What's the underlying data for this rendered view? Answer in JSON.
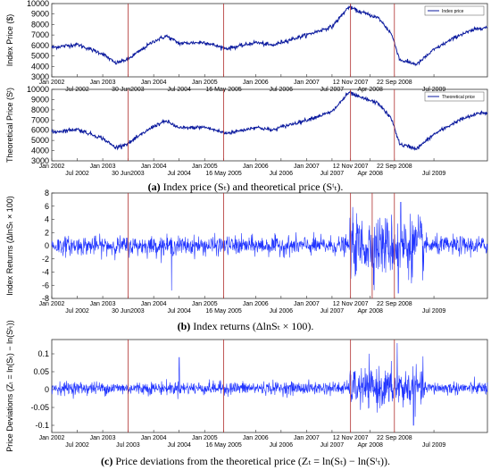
{
  "chart_data": [
    {
      "id": "a1",
      "type": "line",
      "ylabel": "Index Price ($)",
      "ylim": [
        3000,
        10000
      ],
      "yticks": [
        3000,
        4000,
        5000,
        6000,
        7000,
        8000,
        9000,
        10000
      ],
      "grid": false,
      "legend": {
        "placement": "top-right",
        "entries": [
          "Index price"
        ]
      },
      "x": [
        "2002-01",
        "2002-07",
        "2003-01",
        "2003-04",
        "2003-07",
        "2004-01",
        "2004-04",
        "2004-07",
        "2005-01",
        "2005-06",
        "2005-10",
        "2006-01",
        "2006-05",
        "2006-07",
        "2007-01",
        "2007-07",
        "2007-11",
        "2008-01",
        "2008-04",
        "2008-06",
        "2008-09",
        "2008-11",
        "2009-03",
        "2009-07",
        "2010-01",
        "2010-06"
      ],
      "series": [
        {
          "name": "Index price",
          "values": [
            5800,
            6100,
            5200,
            4300,
            4700,
            6400,
            6900,
            6200,
            6300,
            5700,
            6000,
            6300,
            6000,
            6300,
            7000,
            7800,
            9700,
            9300,
            8900,
            8600,
            7100,
            4600,
            4200,
            5600,
            7000,
            7700
          ]
        }
      ],
      "xticks_top": [
        "Jan 2002",
        "Jan 2003",
        "Jan 2004",
        "Jan 2005",
        "Jan 2006",
        "Jan 2007",
        "12 Nov 2007",
        "22 Sep 2008"
      ],
      "xticks_bottom": [
        "Jul 2002",
        "30 Jun2003",
        "Jul 2004",
        "16 May 2005",
        "Jul 2006",
        "Jul 2007",
        "Apr 2008",
        "Jul 2009"
      ],
      "event_lines": [
        "2003-06-30",
        "2005-05-16",
        "2007-11-12",
        "2008-09-22"
      ]
    },
    {
      "id": "a2",
      "type": "line",
      "ylabel": "Theoretical Price (Sᵗ)",
      "ylim": [
        3000,
        10000
      ],
      "yticks": [
        3000,
        4000,
        5000,
        6000,
        7000,
        8000,
        9000,
        10000
      ],
      "grid": false,
      "legend": {
        "placement": "top-right",
        "entries": [
          "Theoretical price"
        ]
      },
      "x": [
        "2002-01",
        "2002-07",
        "2003-01",
        "2003-04",
        "2003-07",
        "2004-01",
        "2004-04",
        "2004-07",
        "2005-01",
        "2005-06",
        "2005-10",
        "2006-01",
        "2006-05",
        "2006-07",
        "2007-01",
        "2007-07",
        "2007-11",
        "2008-01",
        "2008-04",
        "2008-06",
        "2008-09",
        "2008-11",
        "2009-03",
        "2009-07",
        "2010-01",
        "2010-06"
      ],
      "series": [
        {
          "name": "Theoretical price",
          "values": [
            5800,
            6100,
            5200,
            4300,
            4700,
            6400,
            6900,
            6200,
            6300,
            5700,
            6000,
            6300,
            6000,
            6300,
            7000,
            7800,
            9700,
            9300,
            8900,
            8600,
            7100,
            4600,
            4200,
            5600,
            7000,
            7700
          ]
        }
      ],
      "xticks_top": [
        "Jan 2002",
        "Jan 2003",
        "Jan 2004",
        "Jan 2005",
        "Jan 2006",
        "Jan 2007",
        "12 Nov 2007",
        "22 Sep 2008"
      ],
      "xticks_bottom": [
        "Jul 2002",
        "30 Jun2003",
        "Jul 2004",
        "16 May 2005",
        "Jul 2006",
        "Jul 2007",
        "Apr 2008",
        "Jul 2009"
      ],
      "event_lines": [
        "2003-06-30",
        "2005-05-16",
        "2007-11-12",
        "2008-09-22"
      ]
    },
    {
      "id": "b",
      "type": "line",
      "ylabel": "Index Returns (ΔlnSₜ × 100)",
      "ylim": [
        -8,
        8
      ],
      "yticks": [
        -8,
        -6,
        -4,
        -2,
        0,
        2,
        4,
        6,
        8
      ],
      "grid": false,
      "x_range": [
        "2002-01",
        "2010-06"
      ],
      "series": [
        {
          "name": "",
          "values": "noise around 0; typical amplitude ±1.5, spikes to -6.8 (2004) and ±7 during 2008"
        }
      ],
      "xticks_top": [
        "Jan 2002",
        "Jan 2003",
        "Jan 2004",
        "Jan 2005",
        "Jan 2006",
        "Jan 2007",
        "12 Nov 2007",
        "22 Sep 2008"
      ],
      "xticks_bottom": [
        "Jul 2002",
        "30 Jun2003",
        "Jul 2004",
        "16 May 2005",
        "Jul 2006",
        "Jul 2007",
        "Apr 2008",
        "Jul 2009"
      ],
      "event_lines": [
        "2003-06-30",
        "2005-05-16",
        "2007-11-12",
        "2008-04-15",
        "2008-09-22"
      ]
    },
    {
      "id": "c",
      "type": "line",
      "ylabel": "Price Deviations (Zₜ = ln(Sₜ) − ln(Sᵗₜ))",
      "ylim": [
        -0.12,
        0.14
      ],
      "yticks": [
        -0.1,
        -0.05,
        0,
        0.05,
        0.1
      ],
      "grid": false,
      "x_range": [
        "2002-01",
        "2010-06"
      ],
      "series": [
        {
          "name": "",
          "values": "noise around 0.005; amplitude ±0.02, spikes to 0.13 and -0.1 in late 2008"
        }
      ],
      "xticks_top": [
        "Jan 2002",
        "Jan 2003",
        "Jan 2004",
        "Jan 2005",
        "Jan 2006",
        "Jan 2007",
        "12 Nov 2007",
        "22 Sep 2008"
      ],
      "xticks_bottom": [
        "Jul 2002",
        "Jul 2003",
        "Jul 2004",
        "16 May 2005",
        "Jul 2006",
        "Jul 2007",
        "Apr 2008",
        "Jul 2009"
      ],
      "event_lines": [
        "2003-06-30",
        "2005-05-16",
        "2007-11-12",
        "2008-09-22"
      ]
    }
  ],
  "captions": {
    "a_label": "(a)",
    "a_text": " Index price (Sₜ) and theoretical price (Sᵗₜ).",
    "b_label": "(b)",
    "b_text": " Index returns (ΔlnSₜ × 100).",
    "c_label": "(c)",
    "c_text": " Price deviations from the theoretical price (Zₜ = ln(Sₜ) − ln(Sᵗₜ))."
  },
  "colors": {
    "series": "#0b1a9e",
    "series_bright": "#1f33ff",
    "event": "#b0302f",
    "axis": "#333333"
  }
}
